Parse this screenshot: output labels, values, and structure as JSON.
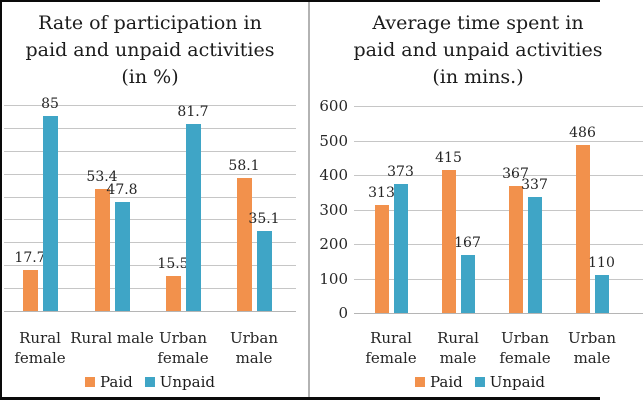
{
  "colors": {
    "paid": "#F2914C",
    "unpaid": "#3FA5C6",
    "grid": "#c6c6c6",
    "axis": "#b5b5b5",
    "text": "#1f1f1f",
    "border": "#0a0a0a",
    "divider": "#b3b3b3"
  },
  "legend": {
    "paid_label": "Paid",
    "unpaid_label": "Unpaid"
  },
  "charts": [
    {
      "id": "participation-rate",
      "title_lines": [
        "Rate of participation in",
        "paid and unpaid activities",
        "(in %)"
      ],
      "category_label_lines": [
        [
          "Rural",
          "female"
        ],
        [
          "Rural male"
        ],
        [
          "Urban",
          "female"
        ],
        [
          "Urban",
          "male"
        ]
      ],
      "chart_data": {
        "type": "bar",
        "title": "Rate of participation in paid and unpaid activities (in %)",
        "categories": [
          "Rural female",
          "Rural male",
          "Urban female",
          "Urban male"
        ],
        "series": [
          {
            "name": "Paid",
            "values": [
              17.7,
              53.4,
              15.5,
              58.1
            ],
            "labels": [
              "17.7",
              "53.4",
              "15.5",
              "58.1"
            ]
          },
          {
            "name": "Unpaid",
            "values": [
              85,
              47.8,
              81.7,
              35.1
            ],
            "labels": [
              "85",
              "47.8",
              "81.7",
              "35.1"
            ]
          }
        ],
        "xlabel": "",
        "ylabel": "",
        "ylim": [
          0,
          90
        ],
        "grid_step": 10,
        "grid": true,
        "y_ticks_labeled": false,
        "legend_position": "bottom"
      }
    },
    {
      "id": "average-time-spent",
      "title_lines": [
        "Average time spent in",
        "paid and unpaid activities",
        "(in mins.)"
      ],
      "category_label_lines": [
        [
          "Rural",
          "female"
        ],
        [
          "Rural",
          "male"
        ],
        [
          "Urban",
          "female"
        ],
        [
          "Urban",
          "male"
        ]
      ],
      "chart_data": {
        "type": "bar",
        "title": "Average time spent in paid and unpaid activities (in mins.)",
        "categories": [
          "Rural female",
          "Rural male",
          "Urban female",
          "Urban male"
        ],
        "series": [
          {
            "name": "Paid",
            "values": [
              313,
              415,
              367,
              486
            ],
            "labels": [
              "313",
              "415",
              "367",
              "486"
            ]
          },
          {
            "name": "Unpaid",
            "values": [
              373,
              167,
              337,
              110
            ],
            "labels": [
              "373",
              "167",
              "337",
              "110"
            ]
          }
        ],
        "xlabel": "",
        "ylabel": "",
        "ylim": [
          0,
          600
        ],
        "grid_step": 100,
        "grid": true,
        "y_ticks_labeled": true,
        "y_ticks": [
          0,
          100,
          200,
          300,
          400,
          500,
          600
        ],
        "legend_position": "bottom"
      }
    }
  ]
}
